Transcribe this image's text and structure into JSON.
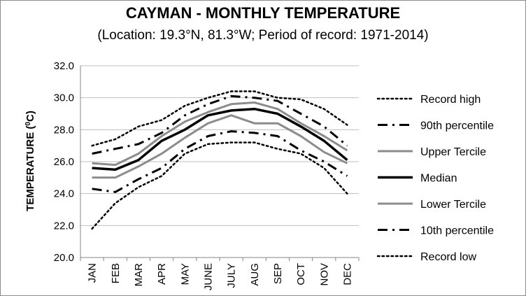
{
  "chart_data": {
    "type": "line",
    "title": "CAYMAN - MONTHLY TEMPERATURE",
    "subtitle": "(Location: 19.3°N, 81.3°W; Period of record: 1971-2014)",
    "xlabel": "",
    "ylabel": "TEMPERATURE (",
    "ylabel_unit": "0",
    "ylabel_suffix": "C)",
    "ylim": [
      20.0,
      32.0
    ],
    "yticks": [
      "20.0",
      "22.0",
      "24.0",
      "26.0",
      "28.0",
      "30.0",
      "32.0"
    ],
    "grid": "horizontal",
    "legend": "right",
    "categories": [
      "JAN",
      "FEB",
      "MAR",
      "APR",
      "MAY",
      "JUNE",
      "JULY",
      "AUG",
      "SEP",
      "OCT",
      "NOV",
      "DEC"
    ],
    "series": [
      {
        "name": "Record high",
        "color": "#000000",
        "style": "dotted",
        "values": [
          27.0,
          27.4,
          28.2,
          28.6,
          29.5,
          30.0,
          30.4,
          30.4,
          30.0,
          29.9,
          29.3,
          28.3
        ]
      },
      {
        "name": "90th percentile",
        "color": "#000000",
        "style": "dashdot",
        "values": [
          26.5,
          26.8,
          27.1,
          27.8,
          28.9,
          29.6,
          30.1,
          30.0,
          29.8,
          29.0,
          28.2,
          27.0
        ]
      },
      {
        "name": "Upper Tercile",
        "color": "#8c8c8c",
        "style": "solid",
        "values": [
          25.9,
          25.8,
          26.5,
          27.6,
          28.5,
          29.1,
          29.6,
          29.7,
          29.3,
          28.4,
          27.6,
          26.7
        ]
      },
      {
        "name": "Median",
        "color": "#000000",
        "style": "solid-thick",
        "values": [
          25.6,
          25.5,
          26.1,
          27.3,
          28.0,
          28.9,
          29.2,
          29.3,
          29.0,
          28.2,
          27.3,
          26.1
        ]
      },
      {
        "name": "Lower Tercile",
        "color": "#8c8c8c",
        "style": "solid",
        "values": [
          25.0,
          25.0,
          25.7,
          26.5,
          27.5,
          28.4,
          28.9,
          28.4,
          28.4,
          27.6,
          26.6,
          25.9
        ]
      },
      {
        "name": "10th percentile",
        "color": "#000000",
        "style": "dashdot",
        "values": [
          24.3,
          24.1,
          24.9,
          25.6,
          26.8,
          27.6,
          27.9,
          27.8,
          27.6,
          26.7,
          26.0,
          25.1
        ]
      },
      {
        "name": "Record low",
        "color": "#000000",
        "style": "dotted",
        "values": [
          21.8,
          23.4,
          24.4,
          25.1,
          26.5,
          27.1,
          27.2,
          27.2,
          26.8,
          26.5,
          25.6,
          24.0
        ]
      }
    ]
  }
}
